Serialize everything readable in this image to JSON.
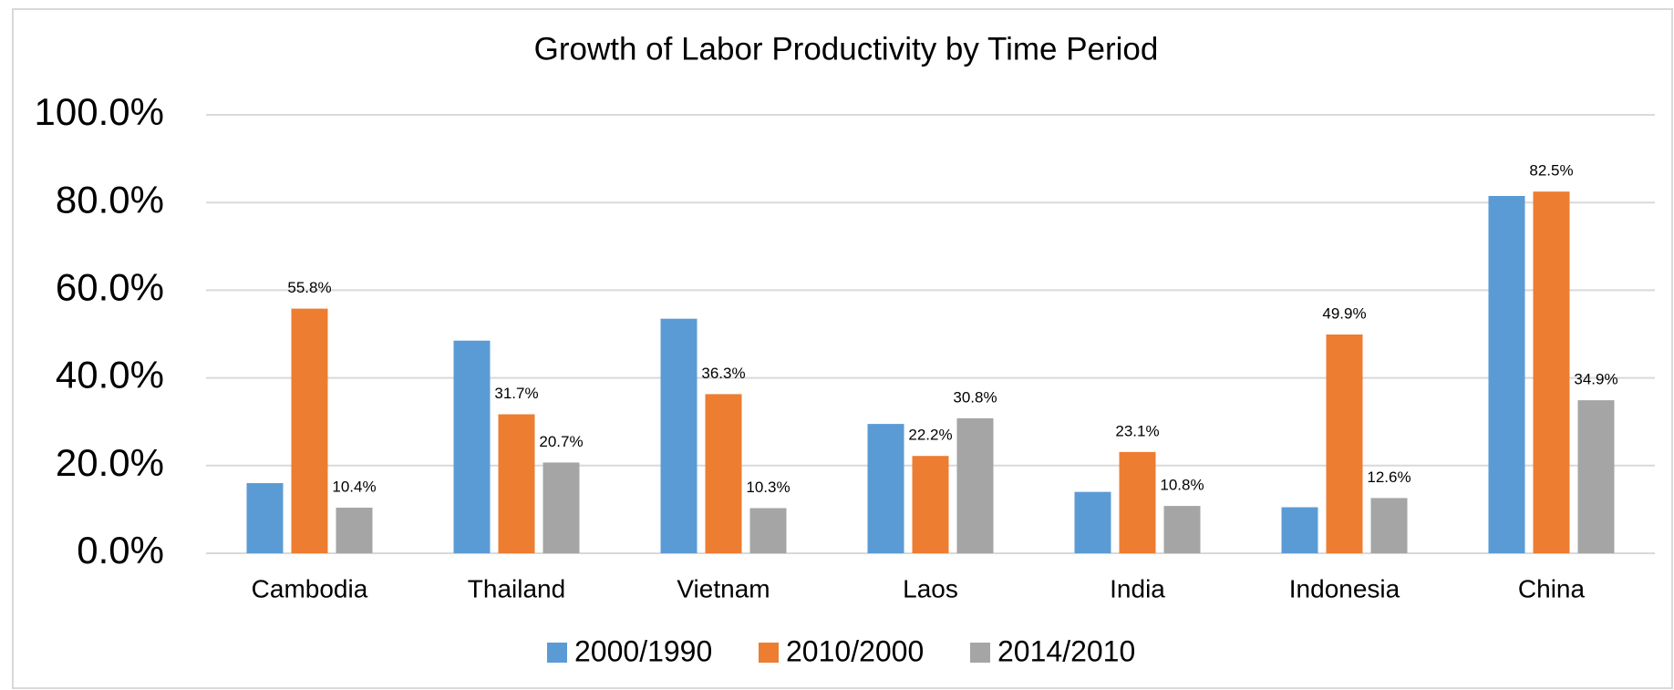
{
  "chart_data": {
    "type": "bar",
    "title": "Growth of Labor Productivity by Time Period",
    "categories": [
      "Cambodia",
      "Thailand",
      "Vietnam",
      "Laos",
      "India",
      "Indonesia",
      "China"
    ],
    "series": [
      {
        "name": "2000/1990",
        "color": "#5b9bd5",
        "values": [
          16,
          48.5,
          53.5,
          29.5,
          14,
          10.5,
          81.5
        ]
      },
      {
        "name": "2010/2000",
        "color": "#ed7d31",
        "values": [
          55.8,
          31.7,
          36.3,
          22.2,
          23.1,
          49.9,
          82.5
        ],
        "value_labels": [
          "55.8%",
          "31.7%",
          "36.3%",
          "22.2%",
          "23.1%",
          "49.9%",
          "82.5%"
        ]
      },
      {
        "name": "2014/2010",
        "color": "#a5a5a5",
        "values": [
          10.4,
          20.7,
          10.3,
          30.8,
          10.8,
          12.6,
          34.9
        ],
        "value_labels": [
          "10.4%",
          "20.7%",
          "10.3%",
          "30.8%",
          "10.8%",
          "12.6%",
          "34.9%"
        ]
      }
    ],
    "ylim": [
      0,
      100
    ],
    "yticks": [
      {
        "value": 0,
        "label": "0.0%"
      },
      {
        "value": 20,
        "label": "20.0%"
      },
      {
        "value": 40,
        "label": "40.0%"
      },
      {
        "value": 60,
        "label": "60.0%"
      },
      {
        "value": 80,
        "label": "80.0%"
      },
      {
        "value": 100,
        "label": "100.0%"
      }
    ],
    "grid": true,
    "legend": "bottom"
  }
}
